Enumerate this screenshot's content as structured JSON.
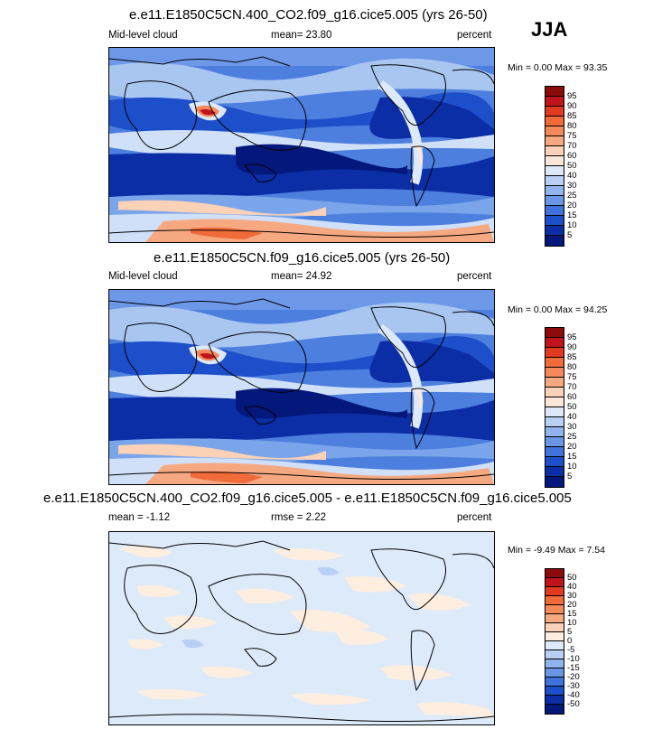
{
  "season": "JJA",
  "panels": [
    {
      "title": "e.e11.E1850C5CN.400_CO2.f09_g16.cice5.005 (yrs 26-50)",
      "left": "Mid-level cloud",
      "middle": "mean=  23.80",
      "right": "percent",
      "minmax": "Min =   0.00 Max =  93.35"
    },
    {
      "title": "e.e11.E1850C5CN.f09_g16.cice5.005 (yrs 26-50)",
      "left": "Mid-level cloud",
      "middle": "mean=  24.92",
      "right": "percent",
      "minmax": "Min =   0.00 Max =  94.25"
    },
    {
      "title": "e.e11.E1850C5CN.400_CO2.f09_g16.cice5.005 - e.e11.E1850C5CN.f09_g16.cice5.005",
      "left": "mean =  -1.12",
      "middle": "rmse =   2.22",
      "right": "percent",
      "minmax": "Min =  -9.49 Max =   7.54"
    }
  ],
  "chart_data": [
    {
      "type": "heatmap",
      "title": "e.e11.E1850C5CN.400_CO2.f09_g16.cice5.005 (yrs 26-50)",
      "variable": "Mid-level cloud",
      "units": "percent",
      "mean": 23.8,
      "min": 0.0,
      "max": 93.35,
      "colorbar_levels": [
        95,
        90,
        85,
        80,
        75,
        70,
        60,
        50,
        40,
        30,
        25,
        20,
        15,
        10,
        5
      ],
      "colorbar_colors": [
        "#8c0a0a",
        "#c0141c",
        "#e03a20",
        "#f06a3a",
        "#f48a5a",
        "#f6a880",
        "#fbd2b8",
        "#fce8d8",
        "#dde9f9",
        "#b8d0f4",
        "#8fb4ee",
        "#6a96e6",
        "#3f72da",
        "#1d4fcb",
        "#0b2ea6",
        "#04177a"
      ]
    },
    {
      "type": "heatmap",
      "title": "e.e11.E1850C5CN.f09_g16.cice5.005 (yrs 26-50)",
      "variable": "Mid-level cloud",
      "units": "percent",
      "mean": 24.92,
      "min": 0.0,
      "max": 94.25,
      "colorbar_levels": [
        95,
        90,
        85,
        80,
        75,
        70,
        60,
        50,
        40,
        30,
        25,
        20,
        15,
        10,
        5
      ],
      "colorbar_colors": [
        "#8c0a0a",
        "#c0141c",
        "#e03a20",
        "#f06a3a",
        "#f48a5a",
        "#f6a880",
        "#fbd2b8",
        "#fce8d8",
        "#dde9f9",
        "#b8d0f4",
        "#8fb4ee",
        "#6a96e6",
        "#3f72da",
        "#1d4fcb",
        "#0b2ea6",
        "#04177a"
      ]
    },
    {
      "type": "heatmap",
      "title": "e.e11.E1850C5CN.400_CO2.f09_g16.cice5.005 - e.e11.E1850C5CN.f09_g16.cice5.005",
      "units": "percent",
      "mean": -1.12,
      "rmse": 2.22,
      "min": -9.49,
      "max": 7.54,
      "colorbar_levels": [
        50,
        40,
        30,
        20,
        15,
        10,
        5,
        0,
        -5,
        -10,
        -15,
        -20,
        -30,
        -40,
        -50
      ],
      "colorbar_colors": [
        "#8c0a0a",
        "#c0141c",
        "#e03a20",
        "#f06a3a",
        "#f48a5a",
        "#f6a880",
        "#fbd2b8",
        "#fdeee0",
        "#ddeaf9",
        "#b8d0f4",
        "#8fb4ee",
        "#6a96e6",
        "#3f72da",
        "#1d4fcb",
        "#0b2ea6",
        "#04177a"
      ]
    }
  ]
}
